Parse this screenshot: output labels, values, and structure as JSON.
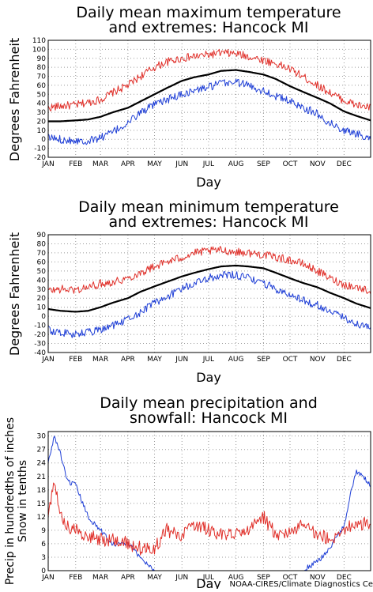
{
  "months": [
    "JAN",
    "FEB",
    "MAR",
    "APR",
    "MAY",
    "JUN",
    "JUL",
    "AUG",
    "SEP",
    "OCT",
    "NOV",
    "DEC"
  ],
  "xlabel": "Day",
  "credit": "NOAA-CIRES/Climate Diagnostics Ce",
  "colors": {
    "mean": "#000000",
    "extreme_high": "#e0302a",
    "extreme_low": "#1f3fd6",
    "precip": "#e0302a",
    "snow": "#1f3fd6",
    "grid": "#9a9a9a"
  },
  "chart_data": [
    {
      "type": "line",
      "title_line1": "Daily mean maximum temperature",
      "title_line2": "and extremes: Hancock MI",
      "ylabel": "Degrees Fahrenheit",
      "ylim": [
        -20,
        110
      ],
      "yticks": [
        -20,
        -10,
        0,
        10,
        20,
        30,
        40,
        50,
        60,
        70,
        80,
        90,
        100,
        110
      ],
      "grid": true,
      "x_unit": "day of year",
      "x_range": [
        1,
        365
      ],
      "series": [
        {
          "role": "extreme_high",
          "x": [
            1,
            15,
            32,
            46,
            60,
            74,
            91,
            105,
            121,
            135,
            152,
            166,
            182,
            196,
            213,
            227,
            244,
            258,
            274,
            288,
            305,
            319,
            335,
            349,
            365
          ],
          "y": [
            35,
            37,
            38,
            41,
            44,
            52,
            60,
            70,
            80,
            86,
            90,
            92,
            94,
            96,
            95,
            92,
            88,
            84,
            78,
            70,
            60,
            52,
            43,
            38,
            35
          ]
        },
        {
          "role": "mean",
          "x": [
            1,
            15,
            32,
            46,
            60,
            74,
            91,
            105,
            121,
            135,
            152,
            166,
            182,
            196,
            213,
            227,
            244,
            258,
            274,
            288,
            305,
            319,
            335,
            349,
            365
          ],
          "y": [
            20,
            20,
            21,
            22,
            25,
            30,
            35,
            42,
            50,
            57,
            65,
            69,
            72,
            76,
            77,
            75,
            72,
            67,
            59,
            53,
            46,
            40,
            31,
            26,
            21
          ]
        },
        {
          "role": "extreme_low",
          "x": [
            1,
            15,
            32,
            46,
            60,
            74,
            91,
            105,
            121,
            135,
            152,
            166,
            182,
            196,
            213,
            227,
            244,
            258,
            274,
            288,
            305,
            319,
            335,
            349,
            365
          ],
          "y": [
            2,
            0,
            -1,
            -2,
            2,
            8,
            18,
            30,
            38,
            44,
            50,
            54,
            58,
            62,
            64,
            60,
            54,
            48,
            42,
            36,
            28,
            18,
            10,
            6,
            2
          ]
        }
      ]
    },
    {
      "type": "line",
      "title_line1": "Daily mean minimum temperature",
      "title_line2": "and extremes: Hancock MI",
      "ylabel": "Degrees Fahrenheit",
      "ylim": [
        -40,
        90
      ],
      "yticks": [
        -40,
        -30,
        -20,
        -10,
        0,
        10,
        20,
        30,
        40,
        50,
        60,
        70,
        80,
        90
      ],
      "grid": true,
      "x_unit": "day of year",
      "x_range": [
        1,
        365
      ],
      "series": [
        {
          "role": "extreme_high",
          "x": [
            1,
            15,
            32,
            46,
            60,
            74,
            91,
            105,
            121,
            135,
            152,
            166,
            182,
            196,
            213,
            227,
            244,
            258,
            274,
            288,
            305,
            319,
            335,
            349,
            365
          ],
          "y": [
            28,
            30,
            29,
            32,
            36,
            38,
            42,
            48,
            55,
            60,
            65,
            70,
            72,
            73,
            71,
            70,
            68,
            65,
            62,
            58,
            50,
            42,
            35,
            32,
            28
          ]
        },
        {
          "role": "mean",
          "x": [
            1,
            15,
            32,
            46,
            60,
            74,
            91,
            105,
            121,
            135,
            152,
            166,
            182,
            196,
            213,
            227,
            244,
            258,
            274,
            288,
            305,
            319,
            335,
            349,
            365
          ],
          "y": [
            8,
            6,
            5,
            6,
            10,
            15,
            20,
            27,
            33,
            38,
            44,
            48,
            52,
            55,
            56,
            55,
            53,
            48,
            42,
            37,
            32,
            26,
            20,
            14,
            9
          ]
        },
        {
          "role": "extreme_low",
          "x": [
            1,
            15,
            32,
            46,
            60,
            74,
            91,
            105,
            121,
            135,
            152,
            166,
            182,
            196,
            213,
            227,
            244,
            258,
            274,
            288,
            305,
            319,
            335,
            349,
            365
          ],
          "y": [
            -15,
            -18,
            -20,
            -18,
            -15,
            -10,
            -4,
            5,
            15,
            22,
            30,
            37,
            42,
            46,
            45,
            42,
            37,
            30,
            24,
            18,
            12,
            5,
            -2,
            -8,
            -12
          ]
        }
      ]
    },
    {
      "type": "line",
      "title_line1": "Daily mean precipitation and",
      "title_line2": "snowfall: Hancock MI",
      "ylabel_line1": "Precip in hundredths of inches",
      "ylabel_line2": "Snow in tenths",
      "ylim": [
        0,
        31
      ],
      "yticks": [
        0,
        3,
        6,
        9,
        12,
        15,
        18,
        21,
        24,
        27,
        30
      ],
      "grid": true,
      "x_unit": "day of year",
      "x_range": [
        1,
        365
      ],
      "series": [
        {
          "role": "snow",
          "x": [
            1,
            8,
            15,
            22,
            32,
            46,
            60,
            74,
            91,
            105,
            121,
            135,
            152,
            166,
            182,
            196,
            213,
            227,
            244,
            258,
            274,
            288,
            305,
            319,
            335,
            342,
            349,
            356,
            365
          ],
          "y": [
            24,
            30,
            26,
            20,
            19,
            12,
            9,
            6,
            6,
            3,
            0,
            0,
            0,
            0,
            0,
            0,
            0,
            0,
            0,
            0,
            0,
            0,
            2,
            5,
            10,
            17,
            22,
            21,
            19
          ]
        },
        {
          "role": "precip",
          "x": [
            1,
            8,
            15,
            22,
            32,
            46,
            60,
            74,
            91,
            105,
            121,
            135,
            152,
            166,
            182,
            196,
            213,
            227,
            244,
            258,
            274,
            288,
            305,
            319,
            335,
            349,
            365
          ],
          "y": [
            13,
            20,
            12,
            10,
            9,
            8,
            7,
            7,
            6,
            5,
            5,
            9,
            8,
            10,
            9,
            8,
            8,
            9,
            12,
            8,
            9,
            10,
            8,
            7,
            9,
            11,
            10
          ]
        }
      ]
    }
  ]
}
